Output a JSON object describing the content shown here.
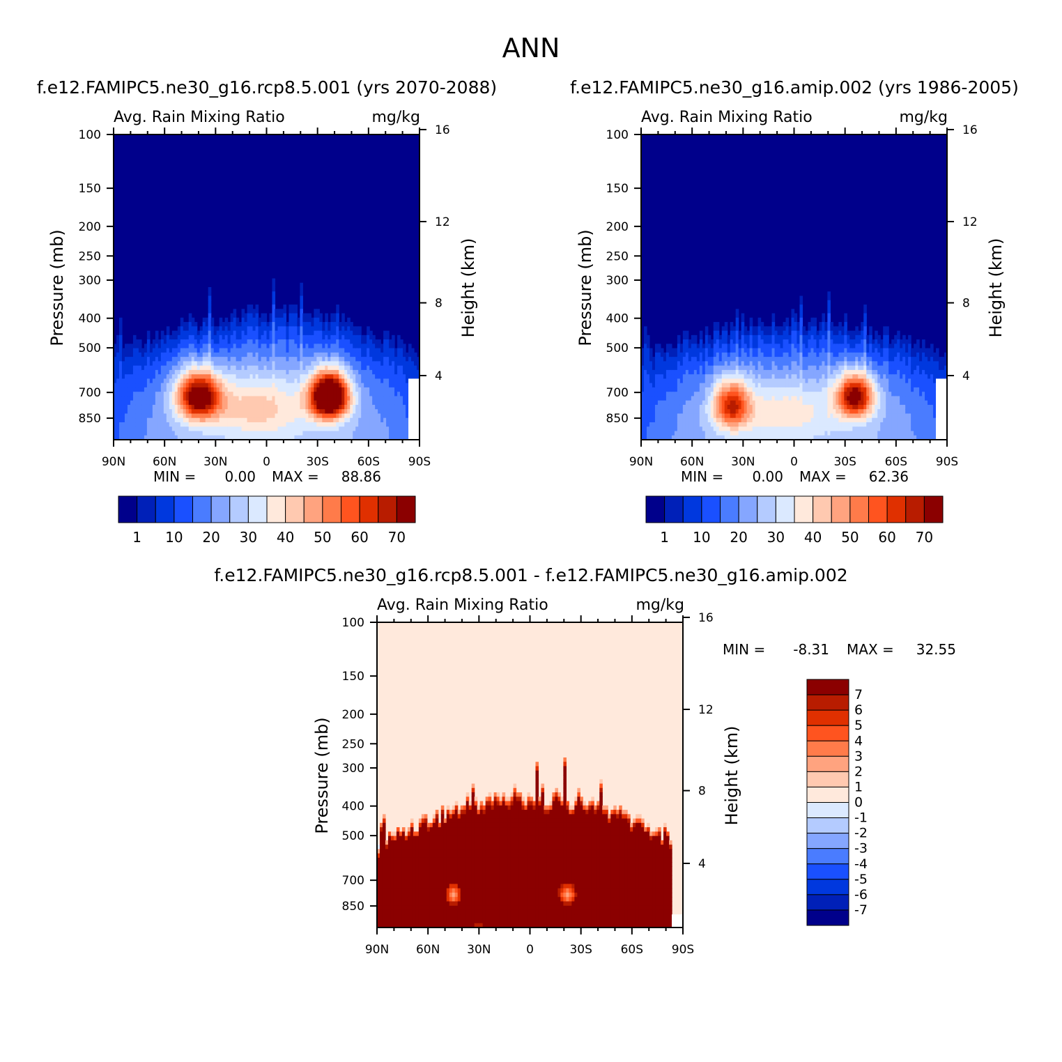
{
  "figure_title": "ANN",
  "palette_sequential": [
    "#00008b",
    "#0020b8",
    "#0038de",
    "#1a50ff",
    "#4a7cff",
    "#85a6ff",
    "#b4cbff",
    "#dbe9ff",
    "#ffe9dc",
    "#ffc9b0",
    "#ffa37f",
    "#ff7b4a",
    "#ff541f",
    "#e03000",
    "#b81c00",
    "#8b0000"
  ],
  "palette_difference": [
    "#00008b",
    "#0020b8",
    "#0038de",
    "#1a50ff",
    "#4a7cff",
    "#85a6ff",
    "#b4cbff",
    "#dbe9ff",
    "#ffe9dc",
    "#ffc9b0",
    "#ffa37f",
    "#ff7b4a",
    "#ff541f",
    "#e03000",
    "#b81c00",
    "#8b0000"
  ],
  "chart_data": [
    {
      "id": "panel-rcp85",
      "type": "heatmap",
      "case_title": "f.e12.FAMIPC5.ne30_g16.rcp8.5.001 (yrs 2070-2088)",
      "variable_label": "Avg. Rain Mixing Ratio",
      "units": "mg/kg",
      "ylabel": "Pressure (mb)",
      "ylabel_right": "Height (km)",
      "xticks": [
        "90N",
        "60N",
        "30N",
        "0",
        "30S",
        "60S",
        "90S"
      ],
      "pressure_ticks": [
        100,
        150,
        200,
        250,
        300,
        400,
        500,
        700,
        850
      ],
      "height_ticks": [
        16,
        12,
        8,
        4
      ],
      "ylim": [
        100,
        1000
      ],
      "min_label": "MIN =",
      "min_value": "0.00",
      "max_label": "MAX =",
      "max_value": "88.86",
      "colorbar_labels": [
        "1",
        "10",
        "20",
        "30",
        "40",
        "50",
        "60",
        "70"
      ],
      "levels": [
        1,
        5,
        10,
        15,
        20,
        25,
        30,
        35,
        40,
        45,
        50,
        55,
        60,
        65,
        70
      ],
      "field": {
        "blobs": [
          {
            "lat": 40,
            "p": 720,
            "amp": 66,
            "w_lat": 13,
            "w_p": 130
          },
          {
            "lat": -37,
            "p": 720,
            "amp": 88.86,
            "w_lat": 11,
            "w_p": 120
          },
          {
            "lat": 5,
            "p": 780,
            "amp": 27,
            "w_lat": 28,
            "w_p": 180
          }
        ],
        "top_pressure_low_lat": 380,
        "top_pressure_high_lat": 500
      }
    },
    {
      "id": "panel-amip",
      "type": "heatmap",
      "case_title": "f.e12.FAMIPC5.ne30_g16.amip.002 (yrs 1986-2005)",
      "variable_label": "Avg. Rain Mixing Ratio",
      "units": "mg/kg",
      "ylabel": "Pressure (mb)",
      "ylabel_right": "Height (km)",
      "xticks": [
        "90N",
        "60N",
        "30N",
        "0",
        "30S",
        "60S",
        "90S"
      ],
      "pressure_ticks": [
        100,
        150,
        200,
        250,
        300,
        400,
        500,
        700,
        850
      ],
      "height_ticks": [
        16,
        12,
        8,
        4
      ],
      "ylim": [
        100,
        1000
      ],
      "min_label": "MIN =",
      "min_value": "0.00",
      "max_label": "MAX =",
      "max_value": "62.36",
      "colorbar_labels": [
        "1",
        "10",
        "20",
        "30",
        "40",
        "50",
        "60",
        "70"
      ],
      "levels": [
        1,
        5,
        10,
        15,
        20,
        25,
        30,
        35,
        40,
        45,
        50,
        55,
        60,
        65,
        70
      ],
      "field": {
        "blobs": [
          {
            "lat": 37,
            "p": 770,
            "amp": 50,
            "w_lat": 11,
            "w_p": 140
          },
          {
            "lat": -36,
            "p": 720,
            "amp": 62.36,
            "w_lat": 11,
            "w_p": 120
          },
          {
            "lat": 5,
            "p": 800,
            "amp": 23,
            "w_lat": 28,
            "w_p": 170
          }
        ],
        "top_pressure_low_lat": 400,
        "top_pressure_high_lat": 520
      }
    },
    {
      "id": "panel-diff",
      "type": "heatmap",
      "case_title": "f.e12.FAMIPC5.ne30_g16.rcp8.5.001 - f.e12.FAMIPC5.ne30_g16.amip.002",
      "variable_label": "Avg. Rain Mixing Ratio",
      "units": "mg/kg",
      "ylabel": "Pressure (mb)",
      "ylabel_right": "Height (km)",
      "xticks": [
        "90N",
        "60N",
        "30N",
        "0",
        "30S",
        "60S",
        "90S"
      ],
      "pressure_ticks": [
        100,
        150,
        200,
        250,
        300,
        400,
        500,
        700,
        850
      ],
      "height_ticks": [
        16,
        12,
        8,
        4
      ],
      "ylim": [
        100,
        1000
      ],
      "min_label": "MIN =",
      "min_value": "-8.31",
      "max_label": "MAX =",
      "max_value": "32.55",
      "colorbar_labels": [
        "7",
        "6",
        "5",
        "4",
        "3",
        "2",
        "1",
        "0",
        "-1",
        "-2",
        "-3",
        "-4",
        "-5",
        "-6",
        "-7"
      ],
      "levels": [
        -7,
        -6,
        -5,
        -4,
        -3,
        -2,
        -1,
        0,
        1,
        2,
        3,
        4,
        5,
        6,
        7
      ],
      "field": {
        "top_pressure_low_lat": 360,
        "top_pressure_high_lat": 520,
        "core_amp": 20,
        "dips": [
          {
            "lat": 45,
            "p": 780,
            "depth": 17,
            "w_lat": 9,
            "w_p": 120
          },
          {
            "lat": -22,
            "p": 780,
            "depth": 17,
            "w_lat": 10,
            "w_p": 120
          }
        ],
        "negatives": [
          {
            "lat": 30,
            "p": 930,
            "amp": -6,
            "w_lat": 6,
            "w_p": 70
          },
          {
            "lat": 88,
            "p": 640,
            "amp": -4,
            "w_lat": 3,
            "w_p": 80
          }
        ]
      }
    }
  ]
}
